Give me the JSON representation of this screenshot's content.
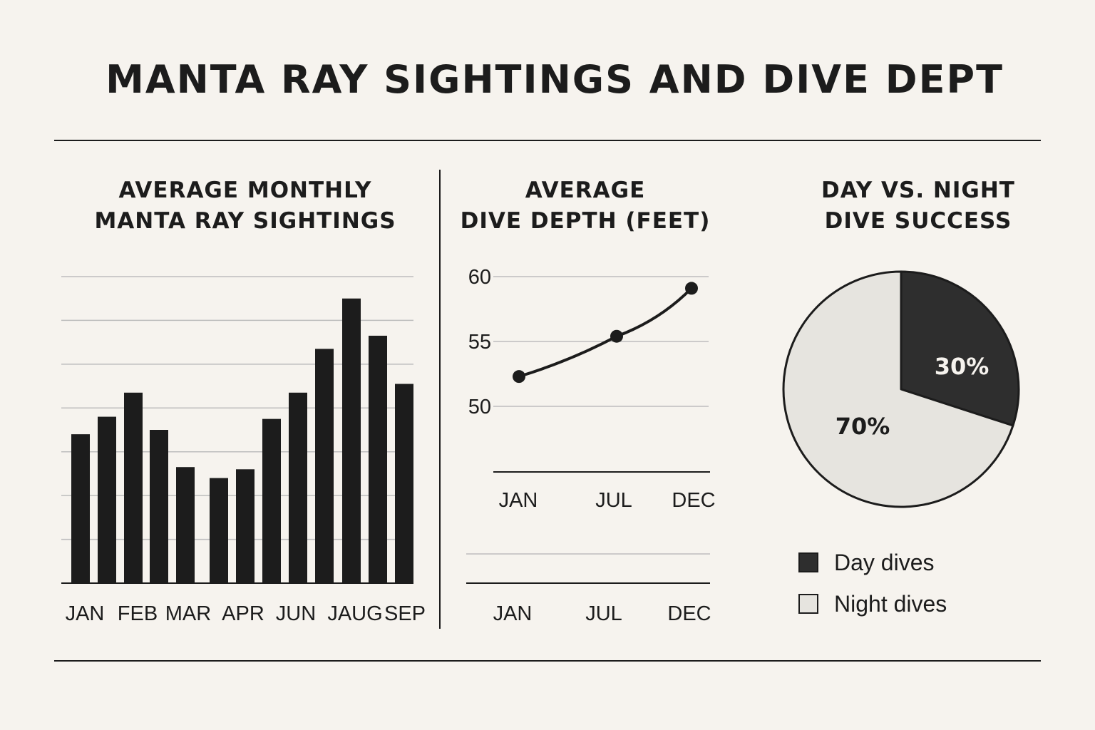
{
  "title": "MANTA RAY SIGHTINGS AND DIVE DEPT",
  "colors": {
    "background": "#f6f3ee",
    "ink": "#1c1c1c",
    "grid": "#bdbdbd",
    "night": "#e6e4df"
  },
  "chart_data": [
    {
      "type": "bar",
      "title": "AVERAGE MONTHLY MANTA RAY SIGHTINGS",
      "title_lines": [
        "AVERAGE MONTHLY",
        "MANTA RAY SIGHTINGS"
      ],
      "tick_labels": [
        "JAN",
        "FEB",
        "MAR",
        "APR",
        "JUN",
        "JAUG",
        "SEP"
      ],
      "values": [
        34,
        38,
        43.5,
        35,
        26.5,
        24,
        26,
        37.5,
        43.5,
        53.5,
        65,
        56.5,
        45.5
      ],
      "ylim": [
        0,
        70
      ],
      "gridlines": [
        0,
        10,
        20,
        30,
        40,
        50,
        60,
        70
      ],
      "xlabel": "",
      "ylabel": "",
      "grid": true
    },
    {
      "type": "line",
      "title": "AVERAGE DIVE DEPTH (FEET)",
      "title_lines": [
        "AVERAGE",
        "DIVE DEPTH (FEET)"
      ],
      "x": [
        "JAN",
        "JUL",
        "DEC"
      ],
      "values": [
        52.3,
        55.4,
        59.1
      ],
      "ylim": [
        45,
        60
      ],
      "yticks": [
        50,
        55,
        60
      ],
      "grid": true,
      "repeated_axis_labels": [
        "JAN",
        "JUL",
        "DEC"
      ]
    },
    {
      "type": "pie",
      "title": "DAY VS. NIGHT DIVE SUCCESS",
      "title_lines": [
        "DAY VS. NIGHT",
        "DIVE SUCCESS"
      ],
      "slices": [
        {
          "label": "Day dives",
          "value": 30,
          "text": "30%",
          "color": "#2e2e2e",
          "text_color": "#f6f3ee"
        },
        {
          "label": "Night dives",
          "value": 70,
          "text": "70%",
          "color": "#e6e4df",
          "text_color": "#1c1c1c"
        }
      ],
      "legend": [
        "Day dives",
        "Night dives"
      ],
      "legend_position": "bottom"
    }
  ]
}
